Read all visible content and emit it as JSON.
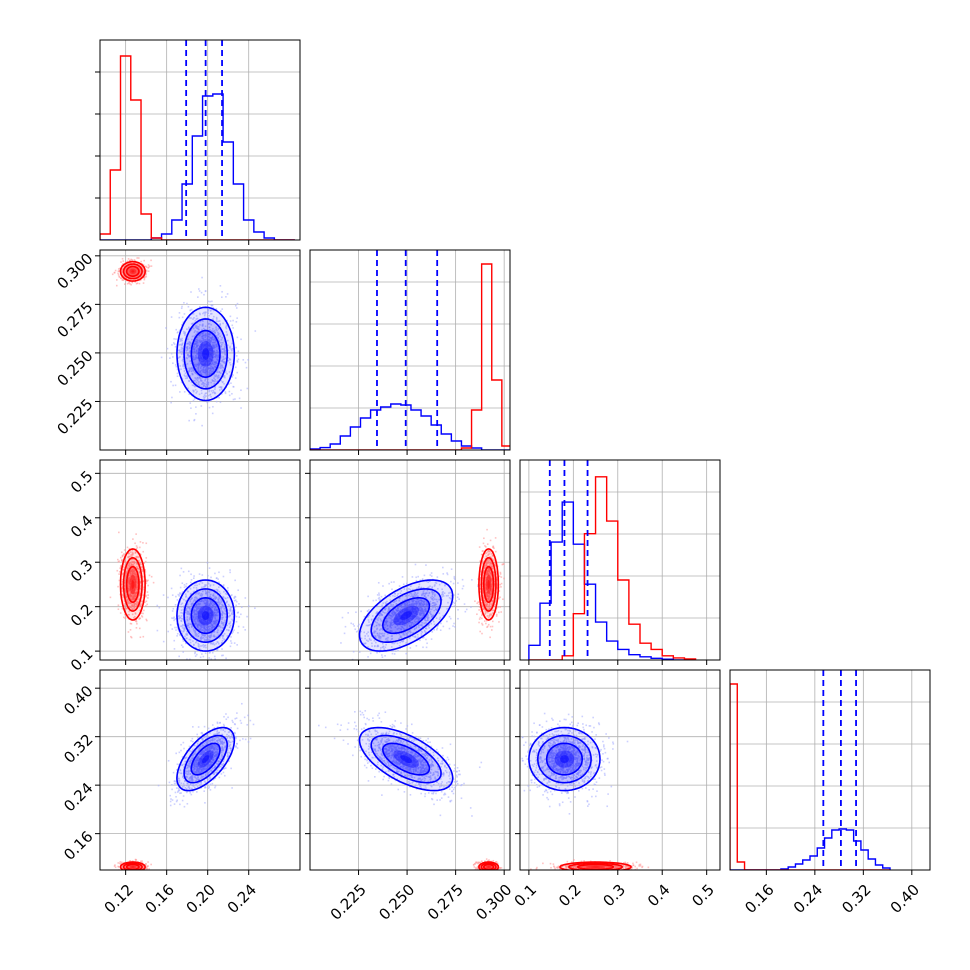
{
  "chart_data": {
    "type": "corner",
    "grid": true,
    "parameters": 4,
    "colors": {
      "blue": "#0000ff",
      "red": "#ff0000",
      "blue_light": "#aab0ff",
      "red_light": "#ff9a9a"
    },
    "ranges": [
      [
        0.095,
        0.29
      ],
      [
        0.2,
        0.303
      ],
      [
        0.08,
        0.53
      ],
      [
        0.1,
        0.43
      ]
    ],
    "tick_values": [
      [
        0.12,
        0.16,
        0.2,
        0.24
      ],
      [
        0.225,
        0.25,
        0.275,
        0.3
      ],
      [
        0.1,
        0.2,
        0.3,
        0.4,
        0.5
      ],
      [
        0.16,
        0.24,
        0.32,
        0.4
      ]
    ],
    "tick_labels": [
      [
        "0.12",
        "0.16",
        "0.20",
        "0.24"
      ],
      [
        "0.225",
        "0.250",
        "0.275",
        "0.300"
      ],
      [
        "0.1",
        "0.2",
        "0.3",
        "0.4",
        "0.5"
      ],
      [
        "0.16",
        "0.24",
        "0.32",
        "0.40"
      ]
    ],
    "quantiles_blue": [
      [
        0.179,
        0.198,
        0.214
      ],
      [
        0.2345,
        0.2493,
        0.2655
      ],
      [
        0.147,
        0.18,
        0.232
      ],
      [
        0.254,
        0.283,
        0.308
      ]
    ],
    "series": [
      {
        "color": "blue",
        "means": [
          0.198,
          0.2495,
          0.18,
          0.283
        ],
        "sds": [
          0.014,
          0.012,
          0.04,
          0.026
        ],
        "correlations": {
          "1-0": 0.0,
          "2-0": 0.0,
          "2-1": 0.55,
          "3-0": 0.6,
          "3-1": -0.6,
          "3-2": 0.0
        }
      },
      {
        "color": "red",
        "means": [
          0.127,
          0.292,
          0.25,
          0.105
        ],
        "sds": [
          0.006,
          0.0025,
          0.04,
          0.004
        ],
        "correlations": {
          "1-0": 0.0,
          "2-0": 0.0,
          "2-1": 0.0,
          "3-0": 0.0,
          "3-1": 0.0,
          "3-2": 0.0
        }
      }
    ],
    "marginals": [
      {
        "bins": [
          0.095,
          0.105,
          0.115,
          0.125,
          0.135,
          0.145,
          0.155,
          0.165,
          0.175,
          0.185,
          0.195,
          0.205,
          0.215,
          0.225,
          0.235,
          0.245,
          0.255,
          0.265,
          0.275,
          0.285
        ],
        "blue": [
          0,
          0,
          0,
          0,
          0,
          0.01,
          0.03,
          0.1,
          0.28,
          0.52,
          0.72,
          0.73,
          0.49,
          0.28,
          0.1,
          0.04,
          0.01,
          0,
          0
        ],
        "red": [
          0.03,
          0.35,
          0.92,
          0.7,
          0.13,
          0.01,
          0,
          0,
          0,
          0,
          0,
          0,
          0,
          0,
          0,
          0,
          0,
          0,
          0
        ],
        "ylim": [
          0,
          1.0
        ]
      },
      {
        "bins": [
          0.2,
          0.2052,
          0.2104,
          0.2156,
          0.2208,
          0.226,
          0.2312,
          0.2364,
          0.2416,
          0.2468,
          0.252,
          0.2572,
          0.2624,
          0.2676,
          0.2728,
          0.278,
          0.2832,
          0.2884,
          0.2936,
          0.2988,
          0.304
        ],
        "blue": [
          0.005,
          0.012,
          0.03,
          0.07,
          0.115,
          0.16,
          0.2,
          0.215,
          0.23,
          0.225,
          0.2,
          0.17,
          0.125,
          0.08,
          0.045,
          0.02,
          0.01,
          0,
          0,
          0
        ],
        "red": [
          0,
          0,
          0,
          0,
          0,
          0,
          0,
          0,
          0,
          0,
          0,
          0,
          0,
          0,
          0,
          0.01,
          0.2,
          0.93,
          0.35,
          0.02
        ],
        "ylim": [
          0,
          1.0
        ]
      },
      {
        "bins": [
          0.1,
          0.125,
          0.15,
          0.175,
          0.2,
          0.225,
          0.25,
          0.275,
          0.3,
          0.325,
          0.35,
          0.375,
          0.4,
          0.425,
          0.45,
          0.475
        ],
        "blue": [
          0.07,
          0.27,
          0.56,
          0.75,
          0.55,
          0.36,
          0.18,
          0.09,
          0.05,
          0.025,
          0.015,
          0.008,
          0.004,
          0,
          0
        ],
        "red": [
          0,
          0,
          0,
          0.02,
          0.22,
          0.6,
          0.87,
          0.66,
          0.38,
          0.17,
          0.08,
          0.05,
          0.02,
          0.01,
          0.005
        ],
        "ylim": [
          0,
          0.95
        ]
      },
      {
        "bins": [
          0.1,
          0.112,
          0.124,
          0.136,
          0.148,
          0.16,
          0.172,
          0.184,
          0.196,
          0.208,
          0.22,
          0.232,
          0.244,
          0.256,
          0.268,
          0.28,
          0.292,
          0.304,
          0.316,
          0.328,
          0.34,
          0.352,
          0.364
        ],
        "blue": [
          0,
          0,
          0,
          0,
          0,
          0,
          0,
          0.005,
          0.015,
          0.03,
          0.05,
          0.07,
          0.11,
          0.16,
          0.2,
          0.205,
          0.2,
          0.145,
          0.1,
          0.055,
          0.025,
          0.01
        ],
        "red": [
          0.93,
          0.04,
          0,
          0,
          0,
          0,
          0,
          0,
          0,
          0,
          0,
          0,
          0,
          0,
          0,
          0,
          0,
          0,
          0,
          0,
          0,
          0
        ],
        "ylim": [
          0,
          1.0
        ]
      }
    ]
  }
}
